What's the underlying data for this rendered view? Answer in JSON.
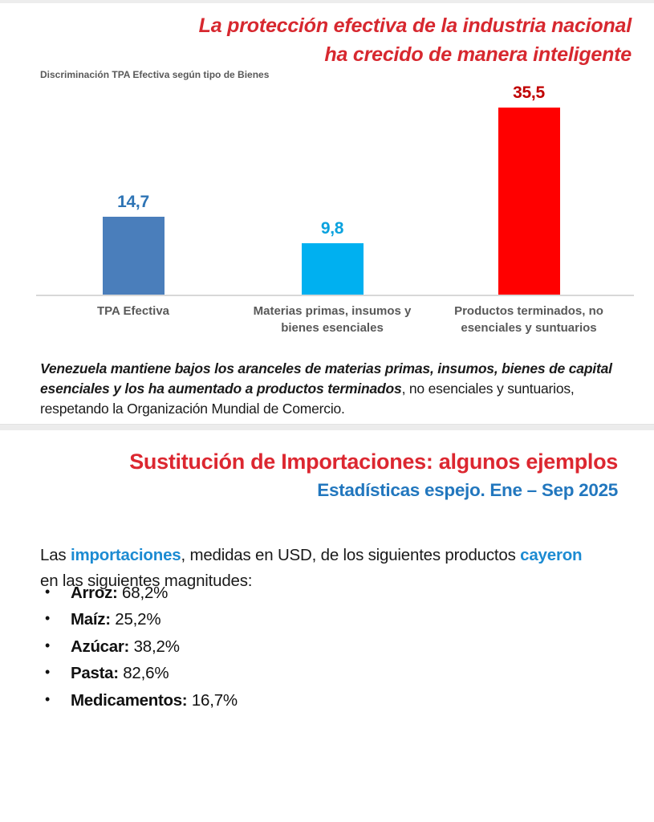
{
  "page": {
    "top_strip_color": "#EDEDED",
    "separator_color": "#ECECEC",
    "background": "#FFFFFF"
  },
  "slide1": {
    "title_line1": "La protección efectiva de la industria nacional",
    "title_line2": "ha crecido de manera inteligente",
    "title_color": "#D7282F",
    "chart_title": "Discriminación TPA Efectiva según tipo de Bienes",
    "note": {
      "bold_italic": "Venezuela mantiene bajos los aranceles de materias primas, insumos, bienes de capital esenciales y los ha aumentado a productos terminados",
      "regular": ", no esenciales y suntuarios, respetando la Organización Mundial de Comercio."
    }
  },
  "chart_data": {
    "type": "bar",
    "title": "Discriminación TPA Efectiva según tipo de Bienes",
    "categories": [
      "TPA Efectiva",
      "Materias primas, insumos y bienes esenciales",
      "Productos terminados, no esenciales y suntuarios"
    ],
    "category_lines": [
      [
        "TPA Efectiva"
      ],
      [
        "Materias primas, insumos y",
        "bienes esenciales"
      ],
      [
        "Productos terminados, no",
        "esenciales y suntuarios"
      ]
    ],
    "values": [
      14.7,
      9.8,
      35.5
    ],
    "value_labels": [
      "14,7",
      "9,8",
      "35,5"
    ],
    "bar_colors": [
      "#4A7EBB",
      "#00B0F0",
      "#FF0000"
    ],
    "value_label_colors": [
      "#2E74B5",
      "#0AA2DE",
      "#C00000"
    ],
    "category_label_color": "#595959",
    "xlabel": "",
    "ylabel": "",
    "ylim": [
      0,
      40
    ],
    "grid": false,
    "legend": false
  },
  "slide2": {
    "title": "Sustitución de Importaciones: algunos ejemplos",
    "title_color": "#DC2730",
    "subtitle": "Estadísticas espejo. Ene – Sep 2025",
    "subtitle_color": "#2277BE",
    "inline_blue_color": "#1C8BD2",
    "intro": {
      "p1": "Las ",
      "blue1": "importaciones",
      "p2": ", medidas en USD, de los siguientes productos ",
      "blue2": "cayeron",
      "p3": " en las siguientes magnitudes:"
    },
    "bullet_glyph": "•",
    "items": [
      {
        "label": "Arroz:",
        "value": "68,2%"
      },
      {
        "label": "Maíz:",
        "value": "25,2%"
      },
      {
        "label": "Azúcar:",
        "value": "38,2%"
      },
      {
        "label": "Pasta:",
        "value": "82,6%"
      },
      {
        "label": "Medicamentos:",
        "value": "16,7%"
      }
    ]
  }
}
